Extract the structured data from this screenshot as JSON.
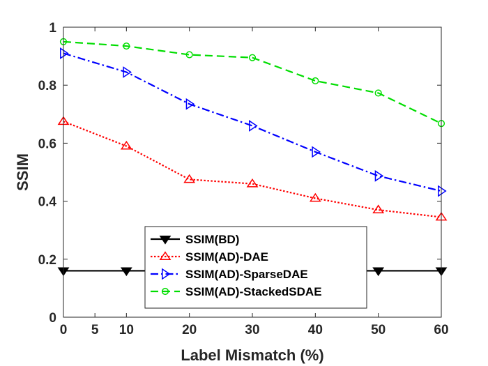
{
  "chart_data": {
    "type": "line",
    "xlabel": "Label Mismatch (%)",
    "ylabel": "SSIM",
    "xlim": [
      0,
      60
    ],
    "ylim": [
      0,
      1
    ],
    "xticks": [
      "0",
      "5",
      "10",
      "20",
      "30",
      "40",
      "50",
      "60"
    ],
    "xtick_values": [
      0,
      5,
      10,
      20,
      30,
      40,
      50,
      60
    ],
    "yticks": [
      "0",
      "0.2",
      "0.4",
      "0.6",
      "0.8",
      "1"
    ],
    "ytick_values": [
      0,
      0.2,
      0.4,
      0.6,
      0.8,
      1
    ],
    "grid": false,
    "legend_position": "bottom-center",
    "x": [
      0,
      10,
      20,
      30,
      40,
      50,
      60
    ],
    "series": [
      {
        "name": "SSIM(BD)",
        "values": [
          0.16,
          0.16,
          0.16,
          0.16,
          0.16,
          0.16,
          0.16
        ],
        "color": "#000000",
        "line_style": "solid",
        "marker": "triangle-down"
      },
      {
        "name": "SSIM(AD)-DAE",
        "values": [
          0.675,
          0.59,
          0.475,
          0.46,
          0.41,
          0.37,
          0.345
        ],
        "color": "#ff0000",
        "line_style": "dotted",
        "marker": "triangle-up"
      },
      {
        "name": "SSIM(AD)-SparseDAE",
        "values": [
          0.91,
          0.845,
          0.735,
          0.66,
          0.57,
          0.487,
          0.435
        ],
        "color": "#0000ff",
        "line_style": "dash-dot",
        "marker": "triangle-right"
      },
      {
        "name": "SSIM(AD)-StackedSDAE",
        "values": [
          0.95,
          0.935,
          0.905,
          0.895,
          0.815,
          0.773,
          0.668
        ],
        "color": "#00dd00",
        "line_style": "dashed",
        "marker": "circle"
      }
    ]
  }
}
